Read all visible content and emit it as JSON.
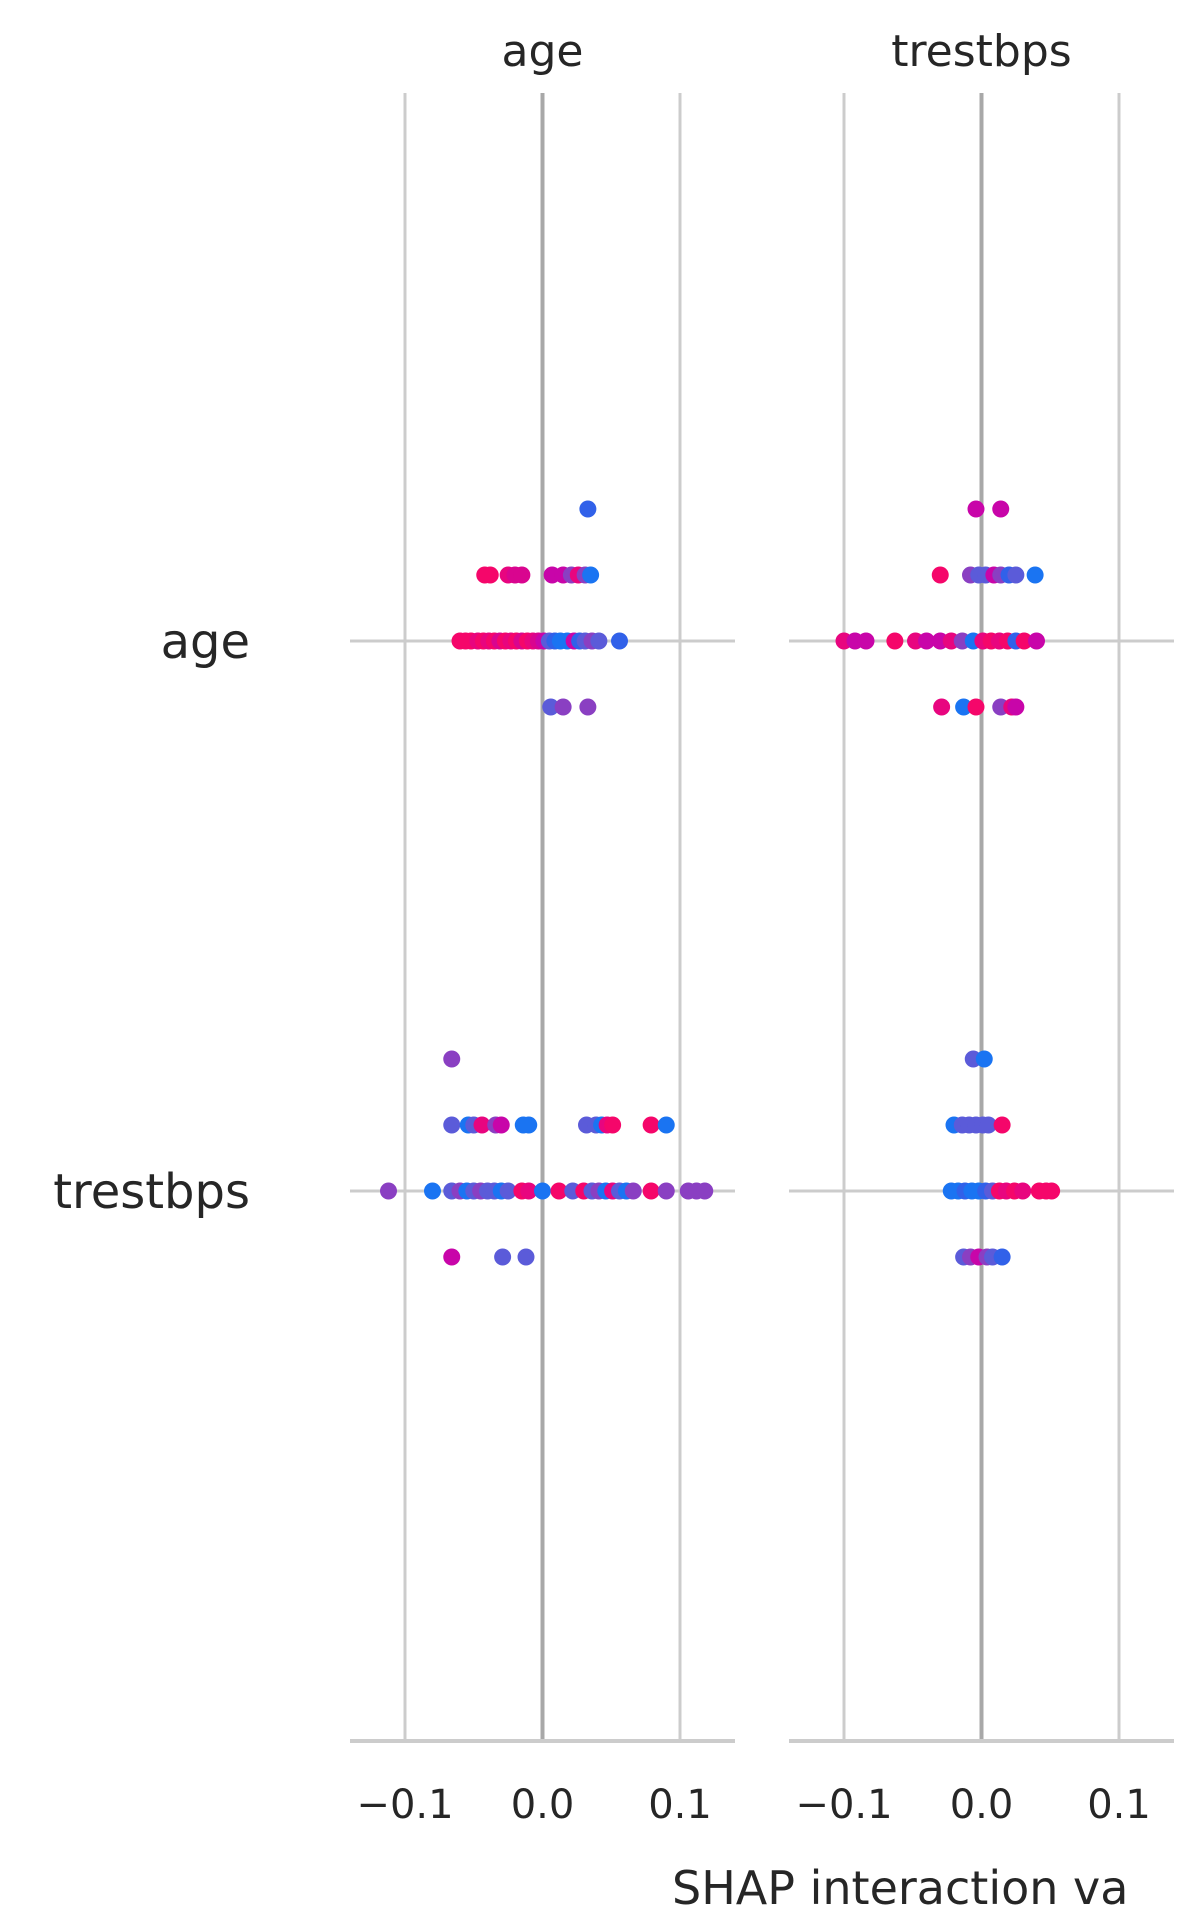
{
  "chart_data": {
    "type": "scatter",
    "xlabel": "SHAP interaction va",
    "panels": [
      {
        "title": "age",
        "xlim": [
          -0.14,
          0.14
        ],
        "xticks": [
          -0.1,
          0.0,
          0.1
        ],
        "xtick_labels": [
          "−0.1",
          "0.0",
          "0.1"
        ],
        "rows": [
          {
            "feature": "age",
            "points": [
              {
                "x": 0.033,
                "level": 2,
                "color": "#3161e9"
              },
              {
                "x": -0.042,
                "level": 1,
                "color": "#f5066a"
              },
              {
                "x": -0.038,
                "level": 1,
                "color": "#f5066a"
              },
              {
                "x": -0.025,
                "level": 1,
                "color": "#e8057f"
              },
              {
                "x": -0.02,
                "level": 1,
                "color": "#d9058f"
              },
              {
                "x": -0.015,
                "level": 1,
                "color": "#d9058f"
              },
              {
                "x": 0.007,
                "level": 1,
                "color": "#c805a9"
              },
              {
                "x": 0.015,
                "level": 1,
                "color": "#c805a9"
              },
              {
                "x": 0.021,
                "level": 1,
                "color": "#8a3fc2"
              },
              {
                "x": 0.026,
                "level": 1,
                "color": "#e8057f"
              },
              {
                "x": 0.031,
                "level": 1,
                "color": "#8a3fc2"
              },
              {
                "x": 0.035,
                "level": 1,
                "color": "#1a74f2"
              },
              {
                "x": -0.06,
                "level": 0,
                "color": "#f5066a"
              },
              {
                "x": -0.056,
                "level": 0,
                "color": "#f5066a"
              },
              {
                "x": -0.052,
                "level": 0,
                "color": "#f5066a"
              },
              {
                "x": -0.047,
                "level": 0,
                "color": "#e8057f"
              },
              {
                "x": -0.043,
                "level": 0,
                "color": "#f5066a"
              },
              {
                "x": -0.039,
                "level": 0,
                "color": "#e8057f"
              },
              {
                "x": -0.035,
                "level": 0,
                "color": "#f5066a"
              },
              {
                "x": -0.031,
                "level": 0,
                "color": "#d9058f"
              },
              {
                "x": -0.027,
                "level": 0,
                "color": "#f5066a"
              },
              {
                "x": -0.023,
                "level": 0,
                "color": "#e8057f"
              },
              {
                "x": -0.019,
                "level": 0,
                "color": "#f5066a"
              },
              {
                "x": -0.015,
                "level": 0,
                "color": "#d9058f"
              },
              {
                "x": -0.011,
                "level": 0,
                "color": "#f5066a"
              },
              {
                "x": -0.007,
                "level": 0,
                "color": "#e8057f"
              },
              {
                "x": -0.003,
                "level": 0,
                "color": "#d9058f"
              },
              {
                "x": 0.001,
                "level": 0,
                "color": "#c805a9"
              },
              {
                "x": 0.005,
                "level": 0,
                "color": "#5b5bd9"
              },
              {
                "x": 0.009,
                "level": 0,
                "color": "#3161e9"
              },
              {
                "x": 0.013,
                "level": 0,
                "color": "#1a74f2"
              },
              {
                "x": 0.018,
                "level": 0,
                "color": "#1a74f2"
              },
              {
                "x": 0.023,
                "level": 0,
                "color": "#c805a9"
              },
              {
                "x": 0.027,
                "level": 0,
                "color": "#3161e9"
              },
              {
                "x": 0.031,
                "level": 0,
                "color": "#5b5bd9"
              },
              {
                "x": 0.036,
                "level": 0,
                "color": "#8a3fc2"
              },
              {
                "x": 0.041,
                "level": 0,
                "color": "#5b5bd9"
              },
              {
                "x": 0.056,
                "level": 0,
                "color": "#3161e9"
              },
              {
                "x": 0.006,
                "level": -1,
                "color": "#5b5bd9"
              },
              {
                "x": 0.015,
                "level": -1,
                "color": "#8a3fc2"
              },
              {
                "x": 0.033,
                "level": -1,
                "color": "#8a3fc2"
              }
            ]
          },
          {
            "feature": "trestbps",
            "points": [
              {
                "x": -0.066,
                "level": 2,
                "color": "#8a3fc2"
              },
              {
                "x": -0.066,
                "level": 1,
                "color": "#5b5bd9"
              },
              {
                "x": -0.054,
                "level": 1,
                "color": "#1a74f2"
              },
              {
                "x": -0.05,
                "level": 1,
                "color": "#5b5bd9"
              },
              {
                "x": -0.044,
                "level": 1,
                "color": "#e8057f"
              },
              {
                "x": -0.034,
                "level": 1,
                "color": "#8a3fc2"
              },
              {
                "x": -0.03,
                "level": 1,
                "color": "#c805a9"
              },
              {
                "x": -0.014,
                "level": 1,
                "color": "#1a74f2"
              },
              {
                "x": -0.01,
                "level": 1,
                "color": "#1a74f2"
              },
              {
                "x": 0.032,
                "level": 1,
                "color": "#5b5bd9"
              },
              {
                "x": 0.039,
                "level": 1,
                "color": "#5b5bd9"
              },
              {
                "x": 0.043,
                "level": 1,
                "color": "#1a74f2"
              },
              {
                "x": 0.047,
                "level": 1,
                "color": "#e8057f"
              },
              {
                "x": 0.051,
                "level": 1,
                "color": "#f5066a"
              },
              {
                "x": 0.079,
                "level": 1,
                "color": "#f5066a"
              },
              {
                "x": 0.09,
                "level": 1,
                "color": "#1a74f2"
              },
              {
                "x": -0.112,
                "level": 0,
                "color": "#8a3fc2"
              },
              {
                "x": -0.08,
                "level": 0,
                "color": "#1a74f2"
              },
              {
                "x": -0.066,
                "level": 0,
                "color": "#5b5bd9"
              },
              {
                "x": -0.06,
                "level": 0,
                "color": "#8a3fc2"
              },
              {
                "x": -0.055,
                "level": 0,
                "color": "#1a74f2"
              },
              {
                "x": -0.05,
                "level": 0,
                "color": "#5b5bd9"
              },
              {
                "x": -0.045,
                "level": 0,
                "color": "#8a3fc2"
              },
              {
                "x": -0.04,
                "level": 0,
                "color": "#5b5bd9"
              },
              {
                "x": -0.035,
                "level": 0,
                "color": "#5b5bd9"
              },
              {
                "x": -0.03,
                "level": 0,
                "color": "#1a74f2"
              },
              {
                "x": -0.025,
                "level": 0,
                "color": "#5b5bd9"
              },
              {
                "x": -0.015,
                "level": 0,
                "color": "#f5066a"
              },
              {
                "x": -0.01,
                "level": 0,
                "color": "#e8057f"
              },
              {
                "x": 0.0,
                "level": 0,
                "color": "#1a74f2"
              },
              {
                "x": 0.012,
                "level": 0,
                "color": "#f5066a"
              },
              {
                "x": 0.022,
                "level": 0,
                "color": "#5b5bd9"
              },
              {
                "x": 0.03,
                "level": 0,
                "color": "#f5066a"
              },
              {
                "x": 0.036,
                "level": 0,
                "color": "#5b5bd9"
              },
              {
                "x": 0.041,
                "level": 0,
                "color": "#8a3fc2"
              },
              {
                "x": 0.046,
                "level": 0,
                "color": "#1a74f2"
              },
              {
                "x": 0.051,
                "level": 0,
                "color": "#e8057f"
              },
              {
                "x": 0.056,
                "level": 0,
                "color": "#5b5bd9"
              },
              {
                "x": 0.061,
                "level": 0,
                "color": "#1a74f2"
              },
              {
                "x": 0.066,
                "level": 0,
                "color": "#8a3fc2"
              },
              {
                "x": 0.079,
                "level": 0,
                "color": "#f5066a"
              },
              {
                "x": 0.09,
                "level": 0,
                "color": "#8a3fc2"
              },
              {
                "x": 0.106,
                "level": 0,
                "color": "#8a3fc2"
              },
              {
                "x": 0.112,
                "level": 0,
                "color": "#8a3fc2"
              },
              {
                "x": 0.118,
                "level": 0,
                "color": "#8a3fc2"
              },
              {
                "x": -0.066,
                "level": -1,
                "color": "#c805a9"
              },
              {
                "x": -0.029,
                "level": -1,
                "color": "#5b5bd9"
              },
              {
                "x": -0.012,
                "level": -1,
                "color": "#5b5bd9"
              }
            ]
          }
        ]
      },
      {
        "title": "trestbps",
        "xlim": [
          -0.14,
          0.14
        ],
        "xticks": [
          -0.1,
          0.0,
          0.1
        ],
        "xtick_labels": [
          "−0.1",
          "0.0",
          "0.1"
        ],
        "rows": [
          {
            "feature": "age",
            "points": [
              {
                "x": -0.004,
                "level": 2,
                "color": "#c805a9"
              },
              {
                "x": 0.014,
                "level": 2,
                "color": "#c805a9"
              },
              {
                "x": -0.03,
                "level": 1,
                "color": "#f5066a"
              },
              {
                "x": -0.008,
                "level": 1,
                "color": "#8a3fc2"
              },
              {
                "x": -0.002,
                "level": 1,
                "color": "#5b5bd9"
              },
              {
                "x": 0.003,
                "level": 1,
                "color": "#5b5bd9"
              },
              {
                "x": 0.009,
                "level": 1,
                "color": "#c805a9"
              },
              {
                "x": 0.014,
                "level": 1,
                "color": "#8a3fc2"
              },
              {
                "x": 0.02,
                "level": 1,
                "color": "#3161e9"
              },
              {
                "x": 0.025,
                "level": 1,
                "color": "#5b5bd9"
              },
              {
                "x": 0.039,
                "level": 1,
                "color": "#1a74f2"
              },
              {
                "x": -0.1,
                "level": 0,
                "color": "#e8057f"
              },
              {
                "x": -0.092,
                "level": 0,
                "color": "#c805a9"
              },
              {
                "x": -0.084,
                "level": 0,
                "color": "#c805a9"
              },
              {
                "x": -0.063,
                "level": 0,
                "color": "#f5066a"
              },
              {
                "x": -0.048,
                "level": 0,
                "color": "#e8057f"
              },
              {
                "x": -0.04,
                "level": 0,
                "color": "#c805a9"
              },
              {
                "x": -0.03,
                "level": 0,
                "color": "#c805a9"
              },
              {
                "x": -0.022,
                "level": 0,
                "color": "#e8057f"
              },
              {
                "x": -0.014,
                "level": 0,
                "color": "#8a3fc2"
              },
              {
                "x": -0.006,
                "level": 0,
                "color": "#1a74f2"
              },
              {
                "x": 0.001,
                "level": 0,
                "color": "#e8057f"
              },
              {
                "x": 0.007,
                "level": 0,
                "color": "#f5066a"
              },
              {
                "x": 0.013,
                "level": 0,
                "color": "#e8057f"
              },
              {
                "x": 0.019,
                "level": 0,
                "color": "#f5066a"
              },
              {
                "x": 0.025,
                "level": 0,
                "color": "#3161e9"
              },
              {
                "x": 0.031,
                "level": 0,
                "color": "#f5066a"
              },
              {
                "x": 0.04,
                "level": 0,
                "color": "#c805a9"
              },
              {
                "x": -0.029,
                "level": -1,
                "color": "#e8057f"
              },
              {
                "x": -0.013,
                "level": -1,
                "color": "#1a74f2"
              },
              {
                "x": -0.004,
                "level": -1,
                "color": "#f5066a"
              },
              {
                "x": 0.014,
                "level": -1,
                "color": "#8a3fc2"
              },
              {
                "x": 0.022,
                "level": -1,
                "color": "#e8057f"
              },
              {
                "x": 0.025,
                "level": -1,
                "color": "#c805a9"
              }
            ]
          },
          {
            "feature": "trestbps",
            "points": [
              {
                "x": -0.006,
                "level": 2,
                "color": "#5b5bd9"
              },
              {
                "x": 0.002,
                "level": 2,
                "color": "#1a74f2"
              },
              {
                "x": -0.02,
                "level": 1,
                "color": "#1a74f2"
              },
              {
                "x": -0.014,
                "level": 1,
                "color": "#5b5bd9"
              },
              {
                "x": -0.009,
                "level": 1,
                "color": "#5b5bd9"
              },
              {
                "x": -0.004,
                "level": 1,
                "color": "#5b5bd9"
              },
              {
                "x": 0.001,
                "level": 1,
                "color": "#5b5bd9"
              },
              {
                "x": 0.005,
                "level": 1,
                "color": "#5b5bd9"
              },
              {
                "x": 0.015,
                "level": 1,
                "color": "#f5066a"
              },
              {
                "x": -0.022,
                "level": 0,
                "color": "#1a74f2"
              },
              {
                "x": -0.017,
                "level": 0,
                "color": "#1a74f2"
              },
              {
                "x": -0.012,
                "level": 0,
                "color": "#3161e9"
              },
              {
                "x": -0.007,
                "level": 0,
                "color": "#1a74f2"
              },
              {
                "x": -0.002,
                "level": 0,
                "color": "#1a74f2"
              },
              {
                "x": 0.003,
                "level": 0,
                "color": "#3161e9"
              },
              {
                "x": 0.008,
                "level": 0,
                "color": "#5b5bd9"
              },
              {
                "x": 0.013,
                "level": 0,
                "color": "#f5066a"
              },
              {
                "x": 0.018,
                "level": 0,
                "color": "#e8057f"
              },
              {
                "x": 0.024,
                "level": 0,
                "color": "#f5066a"
              },
              {
                "x": 0.03,
                "level": 0,
                "color": "#e8057f"
              },
              {
                "x": 0.042,
                "level": 0,
                "color": "#f5066a"
              },
              {
                "x": 0.047,
                "level": 0,
                "color": "#f5066a"
              },
              {
                "x": 0.051,
                "level": 0,
                "color": "#f5066a"
              },
              {
                "x": -0.013,
                "level": -1,
                "color": "#5b5bd9"
              },
              {
                "x": -0.008,
                "level": -1,
                "color": "#8a3fc2"
              },
              {
                "x": -0.002,
                "level": -1,
                "color": "#c805a9"
              },
              {
                "x": 0.004,
                "level": -1,
                "color": "#8a3fc2"
              },
              {
                "x": 0.008,
                "level": -1,
                "color": "#5b5bd9"
              },
              {
                "x": 0.015,
                "level": -1,
                "color": "#3161e9"
              }
            ]
          }
        ]
      }
    ]
  }
}
